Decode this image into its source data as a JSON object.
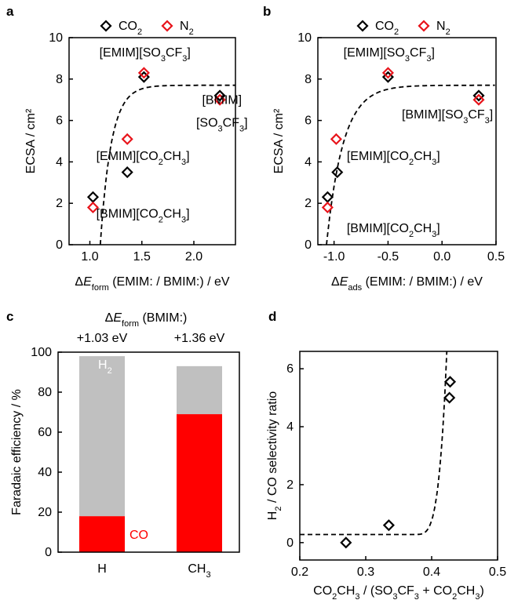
{
  "chart_data": [
    {
      "panel": "a",
      "type": "scatter",
      "xlabel": "ΔE_form (EMIM: / BMIM:) / eV",
      "ylabel": "ECSA / cm²",
      "xlim": [
        0.8,
        2.4
      ],
      "ylim": [
        0,
        10
      ],
      "xticks": [
        "1.0",
        "1.5",
        "2.0"
      ],
      "yticks": [
        "0",
        "2",
        "4",
        "6",
        "8",
        "10"
      ],
      "legend": [
        "CO₂",
        "N₂"
      ],
      "legend_position": "top",
      "series": [
        {
          "name": "CO₂",
          "color": "#000000",
          "marker": "diamond",
          "x": [
            1.03,
            1.36,
            1.52,
            2.25
          ],
          "y": [
            2.3,
            3.5,
            8.1,
            7.2
          ]
        },
        {
          "name": "N₂",
          "color": "#e8141b",
          "marker": "diamond",
          "x": [
            1.03,
            1.36,
            1.52,
            2.25
          ],
          "y": [
            1.8,
            5.1,
            8.3,
            7.0
          ]
        }
      ],
      "fit_curve": {
        "style": "dashed",
        "plateau": 7.7,
        "x0": 1.1,
        "k": 9.5
      },
      "annotations": [
        {
          "text": "[EMIM][SO₃CF₃]",
          "x": 1.53,
          "y": 9.1
        },
        {
          "text": "[BMIM]",
          "x": 2.27,
          "y": 6.8
        },
        {
          "text": "[SO₃CF₃]",
          "x": 2.27,
          "y": 5.7
        },
        {
          "text": "[EMIM][CO₂CH₃]",
          "x": 1.51,
          "y": 4.1
        },
        {
          "text": "[BMIM][CO₂CH₃]",
          "x": 1.51,
          "y": 1.3
        }
      ]
    },
    {
      "panel": "b",
      "type": "scatter",
      "xlabel": "ΔE_ads (EMIM: / BMIM:) / eV",
      "ylabel": "ECSA / cm²",
      "xlim": [
        -1.15,
        0.5
      ],
      "ylim": [
        0,
        10
      ],
      "xticks": [
        "-1.0",
        "-0.5",
        "0.0",
        "0.5"
      ],
      "yticks": [
        "0",
        "2",
        "4",
        "6",
        "8",
        "10"
      ],
      "legend": [
        "CO₂",
        "N₂"
      ],
      "legend_position": "top",
      "series": [
        {
          "name": "CO₂",
          "color": "#000000",
          "marker": "diamond",
          "x": [
            -1.06,
            -0.97,
            -0.5,
            0.34
          ],
          "y": [
            2.3,
            3.5,
            8.1,
            7.2
          ]
        },
        {
          "name": "N₂",
          "color": "#e8141b",
          "marker": "diamond",
          "x": [
            -1.06,
            -0.98,
            -0.5,
            0.34
          ],
          "y": [
            1.8,
            5.1,
            8.3,
            7.0
          ]
        }
      ],
      "fit_curve": {
        "style": "dashed",
        "plateau": 7.7,
        "x0": -1.07,
        "k": 6.5
      },
      "annotations": [
        {
          "text": "[EMIM][SO₃CF₃]",
          "x": -0.49,
          "y": 9.1
        },
        {
          "text": "[BMIM][SO₃CF₃]",
          "x": 0.05,
          "y": 6.1
        },
        {
          "text": "[EMIM][CO₂CH₃]",
          "x": -0.45,
          "y": 4.1
        },
        {
          "text": "[BMIM][CO₂CH₃]",
          "x": -0.45,
          "y": 0.6
        }
      ]
    },
    {
      "panel": "c",
      "type": "bar",
      "stacked": true,
      "ylabel": "Faradaic efficiency / %",
      "top_axis_title": "ΔE_form (BMIM:)",
      "top_labels": [
        "+1.03 eV",
        "+1.36 eV"
      ],
      "categories": [
        "H",
        "CH₃"
      ],
      "ylim": [
        0,
        100
      ],
      "yticks": [
        "0",
        "20",
        "40",
        "60",
        "80",
        "100"
      ],
      "series": [
        {
          "name": "CO",
          "color": "#ff0000",
          "values": [
            18,
            69
          ]
        },
        {
          "name": "H₂",
          "color": "#c0c0c0",
          "values": [
            80,
            24
          ]
        }
      ]
    },
    {
      "panel": "d",
      "type": "scatter",
      "xlabel": "CO₂CH₃ / (SO₃CF₃ + CO₂CH₃)",
      "ylabel": "H₂ / CO selectivity ratio",
      "xlim": [
        0.2,
        0.5
      ],
      "ylim": [
        -0.6,
        6.6
      ],
      "xticks": [
        "0.2",
        "0.3",
        "0.4",
        "0.5"
      ],
      "yticks": [
        "0",
        "2",
        "4",
        "6"
      ],
      "series": [
        {
          "color": "#000000",
          "marker": "diamond",
          "x": [
            0.27,
            0.335,
            0.427,
            0.428
          ],
          "y": [
            0.0,
            0.6,
            5.0,
            5.55
          ]
        }
      ],
      "fit_curve": {
        "style": "dashed",
        "base": 0.28,
        "x_end": 0.423
      }
    }
  ]
}
